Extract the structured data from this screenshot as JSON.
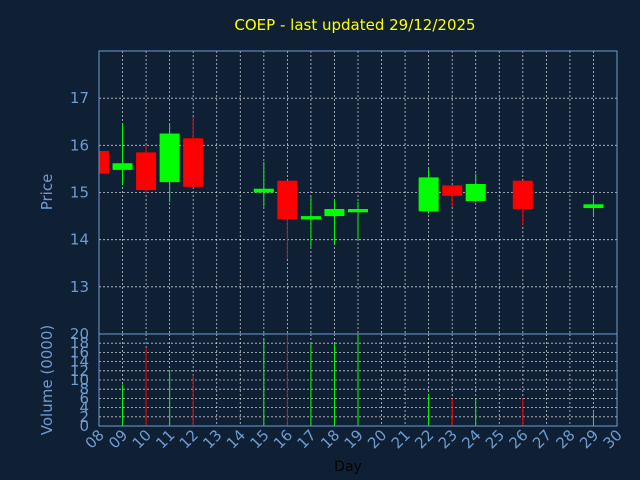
{
  "chart_data": {
    "type": "candlestick",
    "title": "COEP - last updated 29/12/2025",
    "price_panel": {
      "ylabel": "Price",
      "ylim": [
        12.0,
        18.0
      ],
      "yticks": [
        13,
        14,
        15,
        16,
        17
      ]
    },
    "volume_panel": {
      "ylabel": "Volume (0000)",
      "ylim": [
        0,
        20
      ],
      "yticks": [
        0,
        2,
        4,
        6,
        8,
        10,
        12,
        14,
        16,
        18,
        20
      ]
    },
    "xlabel": "Day",
    "xticks": [
      "08",
      "09",
      "10",
      "11",
      "12",
      "13",
      "14",
      "15",
      "16",
      "17",
      "18",
      "19",
      "20",
      "21",
      "22",
      "23",
      "24",
      "25",
      "26",
      "27",
      "28",
      "29",
      "30"
    ],
    "candles": [
      {
        "day": 8,
        "open": 15.88,
        "close": 15.4,
        "high": 15.9,
        "low": 15.38,
        "volume": 0
      },
      {
        "day": 9,
        "open": 15.48,
        "close": 15.62,
        "high": 16.45,
        "low": 15.15,
        "volume": 9
      },
      {
        "day": 10,
        "open": 15.85,
        "close": 15.05,
        "high": 16.0,
        "low": 15.0,
        "volume": 17
      },
      {
        "day": 11,
        "open": 15.22,
        "close": 16.25,
        "high": 16.45,
        "low": 14.8,
        "volume": 12
      },
      {
        "day": 12,
        "open": 16.15,
        "close": 15.12,
        "high": 16.6,
        "low": 15.1,
        "volume": 11
      },
      {
        "day": 15,
        "open": 15.0,
        "close": 15.08,
        "high": 15.65,
        "low": 14.7,
        "volume": 19
      },
      {
        "day": 16,
        "open": 15.25,
        "close": 14.43,
        "high": 15.25,
        "low": 13.6,
        "volume": 20
      },
      {
        "day": 17,
        "open": 14.43,
        "close": 14.5,
        "high": 14.9,
        "low": 13.85,
        "volume": 18
      },
      {
        "day": 18,
        "open": 14.5,
        "close": 14.65,
        "high": 14.85,
        "low": 13.9,
        "volume": 18
      },
      {
        "day": 19,
        "open": 14.58,
        "close": 14.65,
        "high": 14.8,
        "low": 14.0,
        "volume": 20
      },
      {
        "day": 22,
        "open": 14.6,
        "close": 15.32,
        "high": 15.5,
        "low": 14.55,
        "volume": 7
      },
      {
        "day": 23,
        "open": 15.15,
        "close": 14.93,
        "high": 15.15,
        "low": 14.7,
        "volume": 6
      },
      {
        "day": 24,
        "open": 14.82,
        "close": 15.18,
        "high": 15.4,
        "low": 14.8,
        "volume": 6
      },
      {
        "day": 26,
        "open": 15.25,
        "close": 14.65,
        "high": 15.25,
        "low": 14.3,
        "volume": 6
      },
      {
        "day": 29,
        "open": 14.67,
        "close": 14.75,
        "high": 14.95,
        "low": 14.5,
        "volume": 3
      }
    ],
    "colors": {
      "up": "#00ff00",
      "down": "#ff0000",
      "background": "#0f2035",
      "axis": "#6e9bd0",
      "title": "#ffff00",
      "grid": "#ffffff"
    },
    "grid": true
  }
}
